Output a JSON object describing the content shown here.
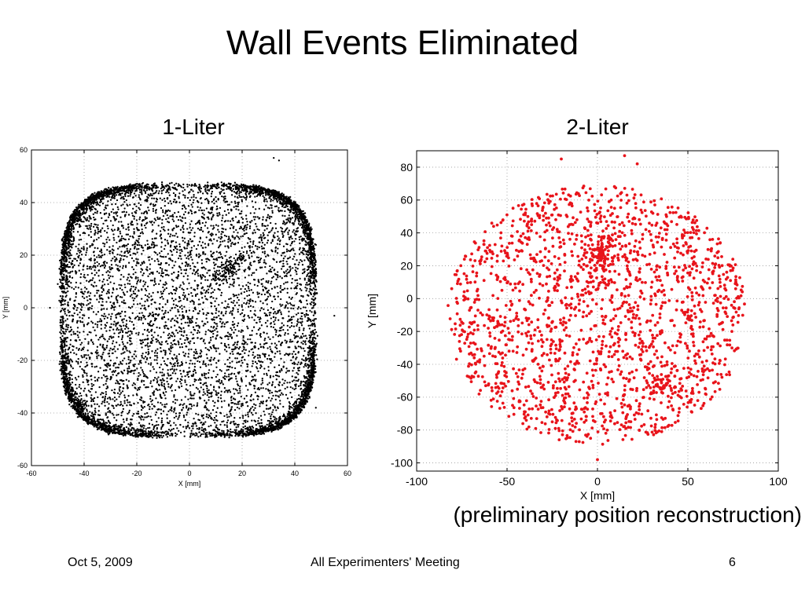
{
  "slide": {
    "title": "Wall Events Eliminated",
    "note": "(preliminary position reconstruction)",
    "footer": {
      "date": "Oct 5, 2009",
      "meeting": "All Experimenters' Meeting",
      "page": "6"
    }
  },
  "chart_data": [
    {
      "type": "scatter",
      "title": "1-Liter",
      "xlabel": "X [mm]",
      "ylabel": "Y [mm]",
      "xlim": [
        -60,
        60
      ],
      "ylim": [
        -60,
        60
      ],
      "xticks": [
        -60,
        -40,
        -20,
        0,
        20,
        40,
        60
      ],
      "yticks": [
        -60,
        -40,
        -20,
        0,
        20,
        40,
        60
      ],
      "grid": true,
      "color": "#000000",
      "distribution": {
        "shape": "rounded-square",
        "interior_extent_x": [
          -49,
          48
        ],
        "interior_extent_y": [
          -49,
          47
        ],
        "dense_wall_ring": true,
        "interior_points": 5200,
        "ring_points": 4000,
        "cluster_center": [
          15,
          15
        ],
        "cluster_points": 120
      },
      "outliers": [
        [
          32,
          57
        ],
        [
          34,
          56
        ],
        [
          -50,
          9
        ],
        [
          55,
          -3
        ],
        [
          48,
          -38
        ],
        [
          -53,
          0
        ]
      ]
    },
    {
      "type": "scatter",
      "title": "2-Liter",
      "xlabel": "X [mm]",
      "ylabel": "Y [mm]",
      "xlim": [
        -100,
        100
      ],
      "ylim": [
        -105,
        90
      ],
      "xticks": [
        -100,
        -50,
        0,
        50,
        100
      ],
      "yticks": [
        -100,
        -80,
        -60,
        -40,
        -20,
        0,
        20,
        40,
        60,
        80
      ],
      "grid": true,
      "color": "#e8141b",
      "distribution": {
        "shape": "disk",
        "center": [
          0,
          -10
        ],
        "radius": 83,
        "points": 1900,
        "cluster_center": [
          2,
          28
        ],
        "cluster_points": 90,
        "cluster2_center": [
          37,
          -53
        ],
        "cluster2_points": 30
      },
      "outliers": [
        [
          -20,
          85
        ],
        [
          15,
          87
        ],
        [
          22,
          82
        ],
        [
          0,
          -98
        ]
      ]
    }
  ]
}
